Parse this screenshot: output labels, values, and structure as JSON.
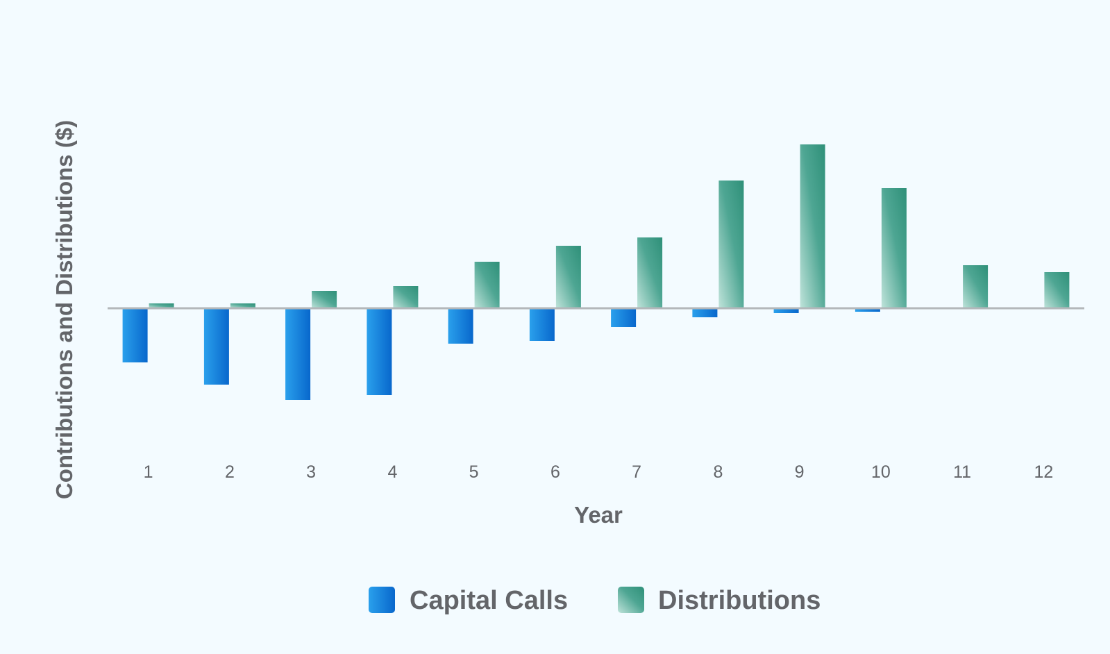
{
  "chart_data": {
    "type": "bar",
    "title": "",
    "xlabel": "Year",
    "ylabel": "Contributions and Distributions ($)",
    "categories": [
      "1",
      "2",
      "3",
      "4",
      "5",
      "6",
      "7",
      "8",
      "9",
      "10",
      "11",
      "12"
    ],
    "series": [
      {
        "name": "Capital Calls",
        "color": "#0a73d8",
        "values": [
          -78,
          -110,
          -132,
          -125,
          -51,
          -47,
          -27,
          -13,
          -7,
          -5,
          0,
          0
        ]
      },
      {
        "name": "Distributions",
        "color": "#3c9d87",
        "values": [
          7,
          7,
          25,
          32,
          67,
          90,
          102,
          184,
          236,
          173,
          62,
          52
        ]
      }
    ],
    "ylim": [
      -220,
      300
    ],
    "y_ticks_shown": false,
    "grid": false,
    "legend_position": "bottom"
  }
}
